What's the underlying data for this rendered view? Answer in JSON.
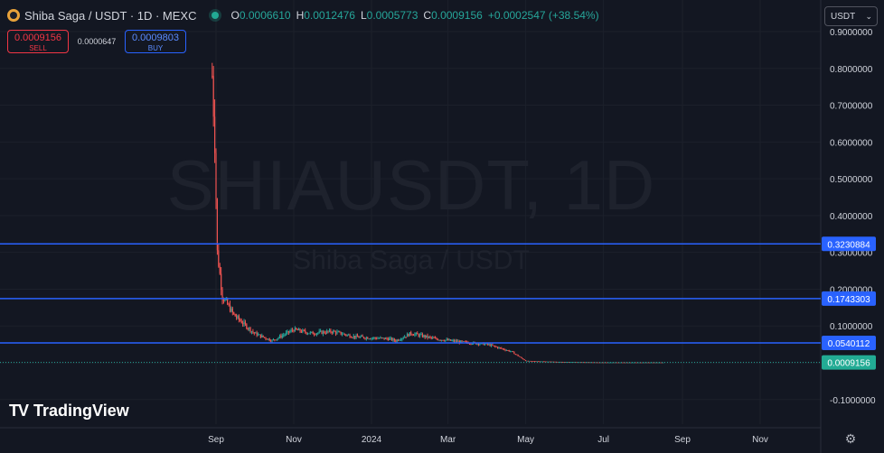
{
  "header": {
    "symbol": "Shiba Saga / USDT · 1D · MEXC",
    "ohlc": {
      "o_label": "O",
      "o": "0.0006610",
      "h_label": "H",
      "h": "0.0012476",
      "l_label": "L",
      "l": "0.0005773",
      "c_label": "C",
      "c": "0.0009156",
      "change": "+0.0002547 (+38.54%)"
    }
  },
  "trade": {
    "sell_price": "0.0009156",
    "sell_label": "SELL",
    "spread": "0.0000647",
    "buy_price": "0.0009803",
    "buy_label": "BUY"
  },
  "currency": {
    "value": "USDT"
  },
  "watermark": {
    "line1": "SHIAUSDT, 1D",
    "line2": "Shiba Saga / USDT"
  },
  "brand": "TradingView",
  "colors": {
    "background": "#131722",
    "up": "#26a69a",
    "down": "#ef5350",
    "hline": "#2962ff",
    "grid": "#1e222d"
  },
  "chart_data": {
    "type": "candlestick",
    "y_axis_ticks": [
      "0.9000000",
      "0.8000000",
      "0.7000000",
      "0.6000000",
      "0.5000000",
      "0.4000000",
      "0.3000000",
      "0.2000000",
      "0.1000000",
      "0.0000000",
      "-0.1000000"
    ],
    "x_axis_ticks": [
      "Sep",
      "Nov",
      "2024",
      "Mar",
      "May",
      "Jul",
      "Sep",
      "Nov"
    ],
    "ylim": [
      -0.13,
      0.93
    ],
    "horizontal_lines": [
      {
        "value": 0.3230884,
        "label": "0.3230884"
      },
      {
        "value": 0.1743303,
        "label": "0.1743303"
      },
      {
        "value": 0.0540112,
        "label": "0.0540112"
      }
    ],
    "last_price": {
      "value": 0.0009156,
      "label": "0.0009156"
    },
    "series_approx": [
      {
        "date": "2023-08-29",
        "close": 0.78
      },
      {
        "date": "2023-08-31",
        "close": 0.6
      },
      {
        "date": "2023-09-02",
        "close": 0.3
      },
      {
        "date": "2023-09-06",
        "close": 0.18
      },
      {
        "date": "2023-09-15",
        "close": 0.13
      },
      {
        "date": "2023-10-01",
        "close": 0.08
      },
      {
        "date": "2023-10-15",
        "close": 0.06
      },
      {
        "date": "2023-11-01",
        "close": 0.09
      },
      {
        "date": "2023-11-15",
        "close": 0.08
      },
      {
        "date": "2023-12-01",
        "close": 0.085
      },
      {
        "date": "2023-12-20",
        "close": 0.07
      },
      {
        "date": "2024-01-15",
        "close": 0.065
      },
      {
        "date": "2024-01-20",
        "close": 0.06
      },
      {
        "date": "2024-02-01",
        "close": 0.08
      },
      {
        "date": "2024-02-20",
        "close": 0.065
      },
      {
        "date": "2024-03-15",
        "close": 0.055
      },
      {
        "date": "2024-04-01",
        "close": 0.05
      },
      {
        "date": "2024-04-20",
        "close": 0.03
      },
      {
        "date": "2024-05-01",
        "close": 0.005
      },
      {
        "date": "2024-06-01",
        "close": 0.002
      },
      {
        "date": "2024-07-01",
        "close": 0.001
      },
      {
        "date": "2024-08-18",
        "close": 0.0009156
      }
    ]
  }
}
